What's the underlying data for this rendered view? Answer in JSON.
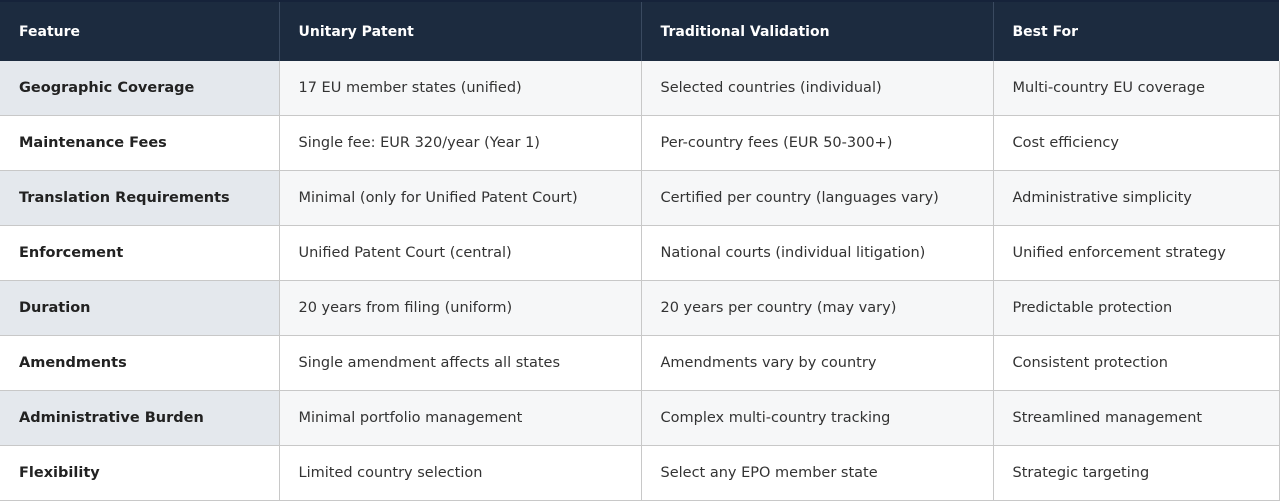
{
  "table": {
    "headers": [
      "Feature",
      "Unitary Patent",
      "Traditional Validation",
      "Best For"
    ],
    "rows": [
      [
        "Geographic Coverage",
        "17 EU member states (unified)",
        "Selected countries (individual)",
        "Multi-country EU coverage"
      ],
      [
        "Maintenance Fees",
        "Single fee: EUR 320/year (Year 1)",
        "Per-country fees (EUR 50-300+)",
        "Cost efficiency"
      ],
      [
        "Translation Requirements",
        "Minimal (only for Unified Patent Court)",
        "Certified per country (languages vary)",
        "Administrative simplicity"
      ],
      [
        "Enforcement",
        "Unified Patent Court (central)",
        "National courts (individual litigation)",
        "Unified enforcement strategy"
      ],
      [
        "Duration",
        "20 years from filing (uniform)",
        "20 years per country (may vary)",
        "Predictable protection"
      ],
      [
        "Amendments",
        "Single amendment affects all states",
        "Amendments vary by country",
        "Consistent protection"
      ],
      [
        "Administrative Burden",
        "Minimal portfolio management",
        "Complex multi-country tracking",
        "Streamlined management"
      ],
      [
        "Flexibility",
        "Limited country selection",
        "Select any EPO member state",
        "Strategic targeting"
      ]
    ]
  },
  "colors": {
    "header_bg": "#1c2b3f",
    "stripe_bg": "#f6f7f8",
    "feature_stripe_bg": "#e4e8ed"
  }
}
